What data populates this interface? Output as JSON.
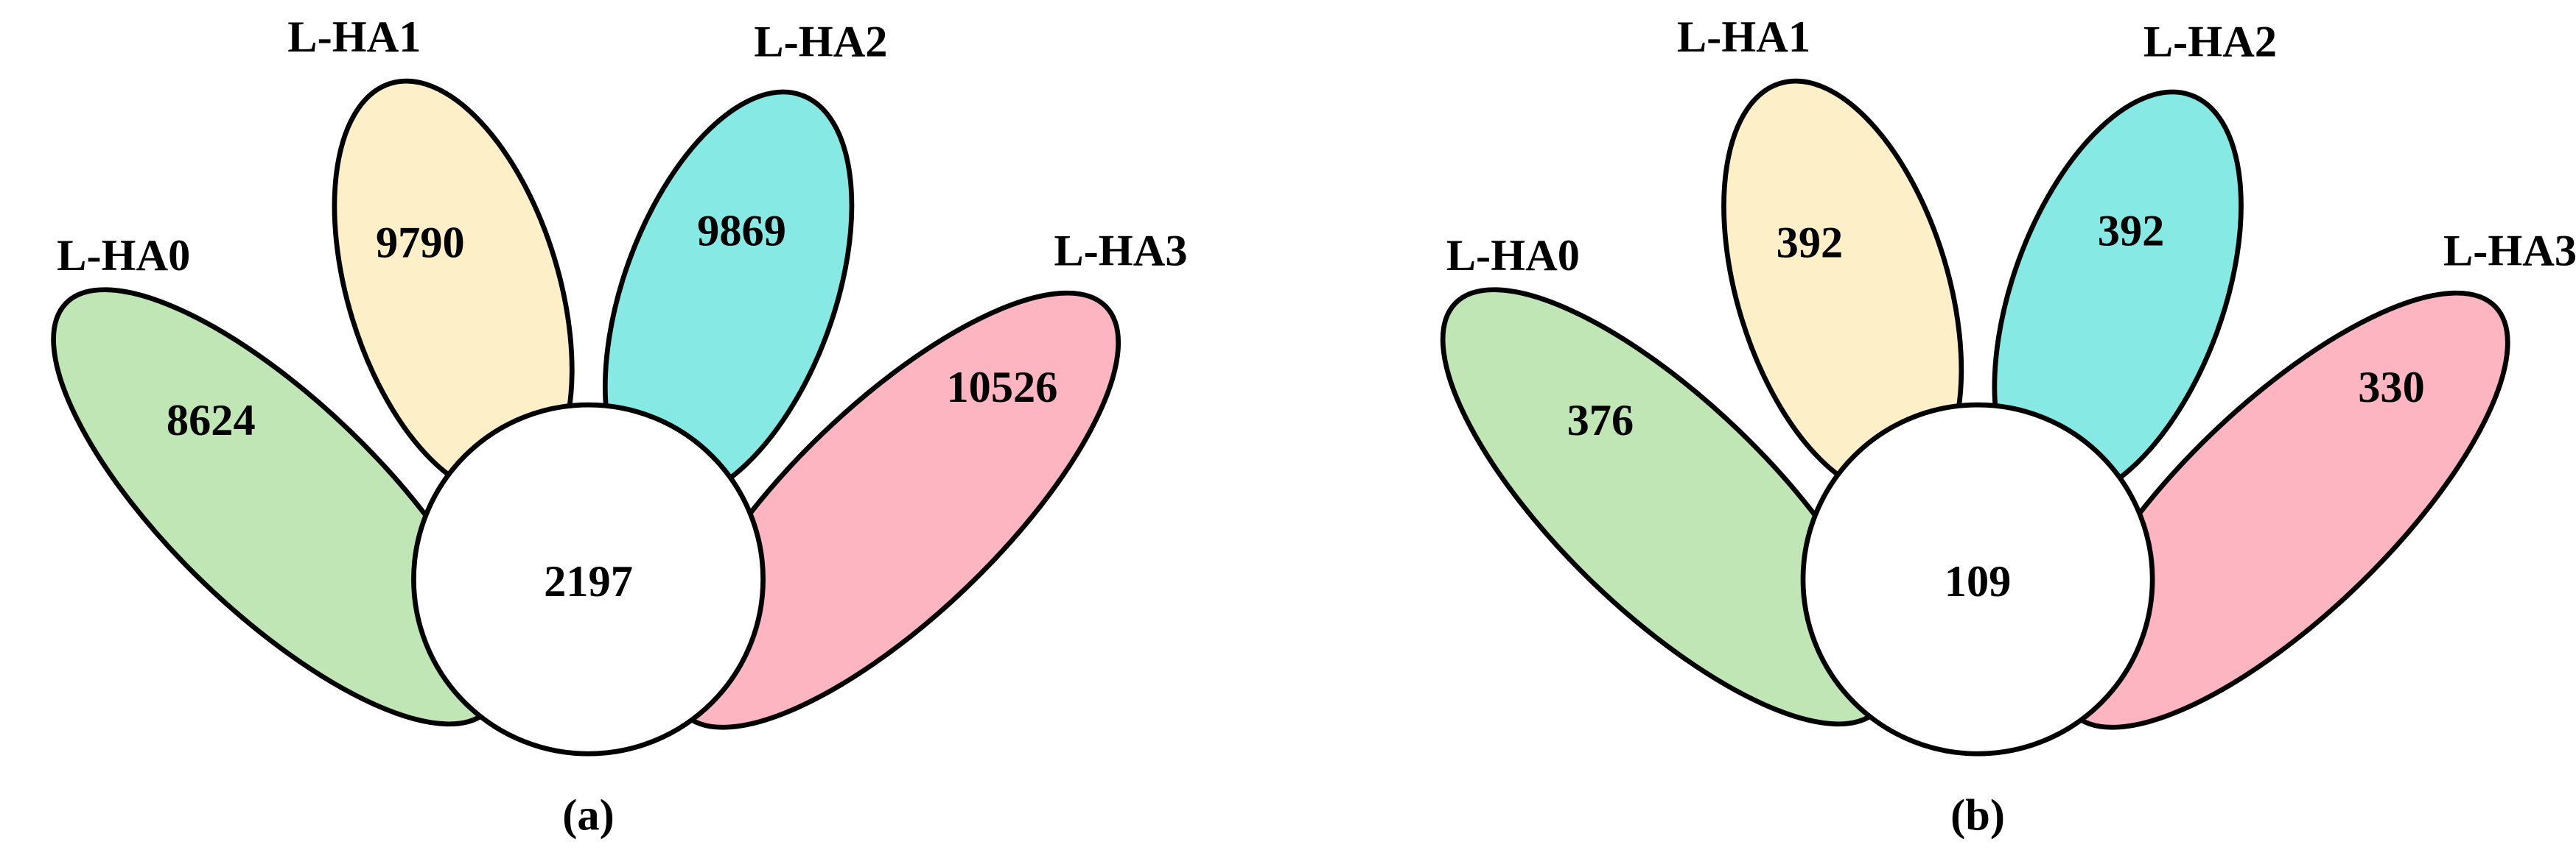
{
  "panels": [
    {
      "label": "(a)",
      "center": 2197,
      "sets": [
        {
          "name": "L-HA0",
          "count": 8624
        },
        {
          "name": "L-HA1",
          "count": 9790
        },
        {
          "name": "L-HA2",
          "count": 9869
        },
        {
          "name": "L-HA3",
          "count": 10526
        }
      ]
    },
    {
      "label": "(b)",
      "center": 109,
      "sets": [
        {
          "name": "L-HA0",
          "count": 376
        },
        {
          "name": "L-HA1",
          "count": 392
        },
        {
          "name": "L-HA2",
          "count": 392
        },
        {
          "name": "L-HA3",
          "count": 330
        }
      ]
    }
  ]
}
